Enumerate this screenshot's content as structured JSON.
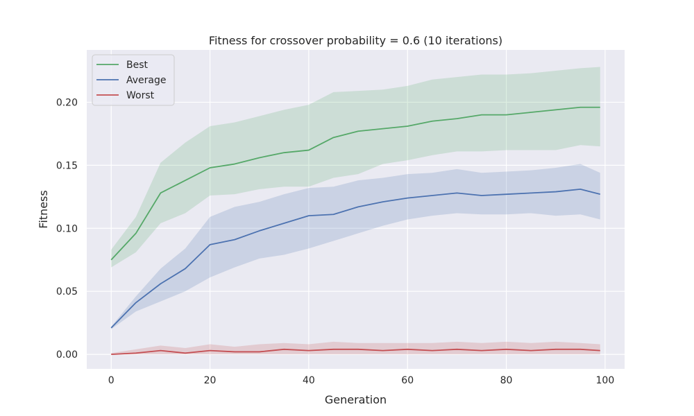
{
  "chart_data": {
    "type": "line",
    "title": "Fitness for crossover probability = 0.6 (10 iterations)",
    "xlabel": "Generation",
    "ylabel": "Fitness",
    "xlim": [
      -4.95,
      103.95
    ],
    "ylim": [
      -0.0115,
      0.2415
    ],
    "xticks": [
      0,
      20,
      40,
      60,
      80,
      100
    ],
    "xtick_labels": [
      "0",
      "20",
      "40",
      "60",
      "80",
      "100"
    ],
    "yticks": [
      0.0,
      0.05,
      0.1,
      0.15,
      0.2
    ],
    "ytick_labels": [
      "0.00",
      "0.05",
      "0.10",
      "0.15",
      "0.20"
    ],
    "grid": true,
    "legend_position": "top-left",
    "x": [
      0,
      5,
      10,
      15,
      20,
      25,
      30,
      35,
      40,
      45,
      50,
      55,
      60,
      65,
      70,
      75,
      80,
      85,
      90,
      95,
      99
    ],
    "series": [
      {
        "name": "Best",
        "color": "#55a868",
        "values": [
          0.075,
          0.096,
          0.128,
          0.138,
          0.148,
          0.151,
          0.156,
          0.16,
          0.162,
          0.172,
          0.177,
          0.179,
          0.181,
          0.185,
          0.187,
          0.19,
          0.19,
          0.192,
          0.194,
          0.196,
          0.196
        ],
        "lower": [
          0.069,
          0.081,
          0.104,
          0.112,
          0.126,
          0.127,
          0.131,
          0.133,
          0.133,
          0.14,
          0.143,
          0.151,
          0.154,
          0.158,
          0.161,
          0.161,
          0.162,
          0.162,
          0.162,
          0.166,
          0.165
        ],
        "upper": [
          0.083,
          0.109,
          0.152,
          0.168,
          0.181,
          0.184,
          0.189,
          0.194,
          0.198,
          0.208,
          0.209,
          0.21,
          0.213,
          0.218,
          0.22,
          0.222,
          0.222,
          0.223,
          0.225,
          0.227,
          0.228
        ]
      },
      {
        "name": "Average",
        "color": "#4c72b0",
        "values": [
          0.021,
          0.041,
          0.056,
          0.068,
          0.087,
          0.091,
          0.098,
          0.104,
          0.11,
          0.111,
          0.117,
          0.121,
          0.124,
          0.126,
          0.128,
          0.126,
          0.127,
          0.128,
          0.129,
          0.131,
          0.127
        ],
        "lower": [
          0.02,
          0.034,
          0.042,
          0.05,
          0.061,
          0.069,
          0.076,
          0.079,
          0.084,
          0.09,
          0.096,
          0.102,
          0.107,
          0.11,
          0.112,
          0.111,
          0.111,
          0.112,
          0.11,
          0.111,
          0.107
        ],
        "upper": [
          0.022,
          0.046,
          0.068,
          0.084,
          0.109,
          0.117,
          0.121,
          0.127,
          0.132,
          0.133,
          0.138,
          0.14,
          0.143,
          0.144,
          0.147,
          0.144,
          0.145,
          0.146,
          0.148,
          0.151,
          0.144
        ]
      },
      {
        "name": "Worst",
        "color": "#c44e52",
        "values": [
          0.0,
          0.001,
          0.003,
          0.001,
          0.003,
          0.002,
          0.002,
          0.004,
          0.003,
          0.004,
          0.004,
          0.003,
          0.004,
          0.003,
          0.004,
          0.003,
          0.004,
          0.003,
          0.004,
          0.004,
          0.003
        ],
        "lower": [
          0.0,
          0.0,
          0.0,
          0.0,
          0.0,
          0.0,
          0.0,
          0.0,
          0.0,
          0.0,
          0.0,
          0.0,
          0.0,
          0.0,
          0.0,
          0.0,
          0.0,
          0.0,
          0.0,
          0.0,
          0.0
        ],
        "upper": [
          0.001,
          0.004,
          0.007,
          0.005,
          0.008,
          0.006,
          0.008,
          0.009,
          0.008,
          0.01,
          0.009,
          0.009,
          0.009,
          0.009,
          0.01,
          0.009,
          0.01,
          0.009,
          0.01,
          0.009,
          0.008
        ]
      }
    ]
  }
}
